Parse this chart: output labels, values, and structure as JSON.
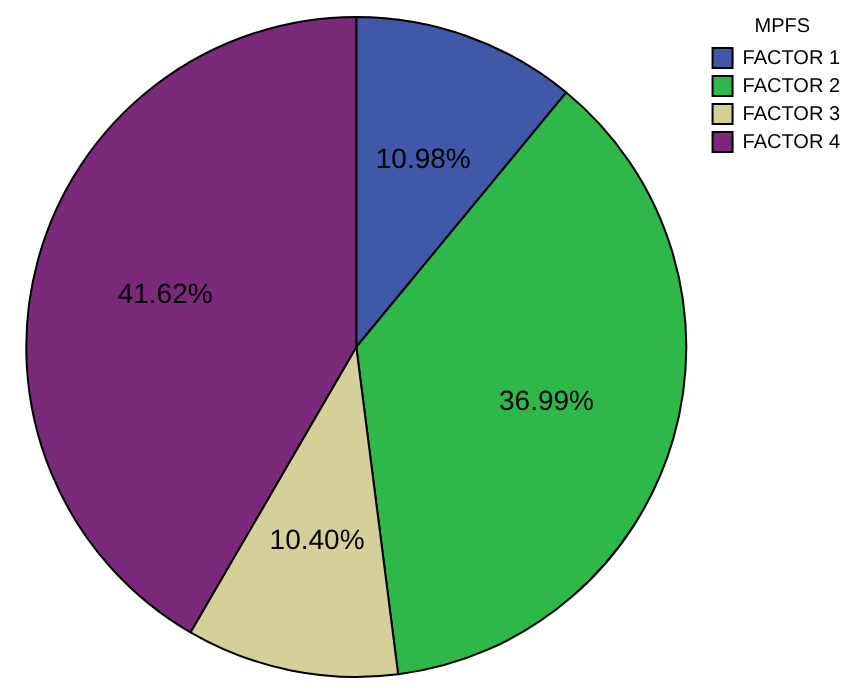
{
  "chart_data": {
    "type": "pie",
    "legend_title": "MPFS",
    "categories": [
      "FACTOR 1",
      "FACTOR 2",
      "FACTOR 3",
      "FACTOR 4"
    ],
    "values": [
      10.98,
      36.99,
      10.4,
      41.62
    ],
    "colors": [
      "#3f58a8",
      "#2fb84a",
      "#d5d09a",
      "#7b2a7b"
    ],
    "value_labels": [
      "10.98%",
      "36.99%",
      "10.40%",
      "41.62%"
    ],
    "legend": "top right"
  }
}
